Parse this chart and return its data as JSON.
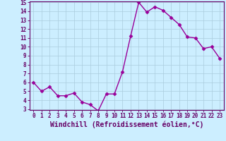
{
  "x": [
    0,
    1,
    2,
    3,
    4,
    5,
    6,
    7,
    8,
    9,
    10,
    11,
    12,
    13,
    14,
    15,
    16,
    17,
    18,
    19,
    20,
    21,
    22,
    23
  ],
  "y": [
    6.0,
    5.0,
    5.5,
    4.5,
    4.5,
    4.8,
    3.8,
    3.5,
    2.8,
    4.7,
    4.7,
    7.2,
    11.2,
    15.0,
    13.9,
    14.5,
    14.1,
    13.3,
    12.5,
    11.1,
    11.0,
    9.8,
    10.0,
    8.7
  ],
  "line_color": "#990099",
  "marker": "D",
  "marker_size": 2.5,
  "bg_color": "#cceeff",
  "grid_color": "#aaccdd",
  "xlabel": "Windchill (Refroidissement éolien,°C)",
  "ylabel": "",
  "ylim": [
    3,
    15
  ],
  "xlim": [
    -0.5,
    23.5
  ],
  "yticks": [
    3,
    4,
    5,
    6,
    7,
    8,
    9,
    10,
    11,
    12,
    13,
    14,
    15
  ],
  "xticks": [
    0,
    1,
    2,
    3,
    4,
    5,
    6,
    7,
    8,
    9,
    10,
    11,
    12,
    13,
    14,
    15,
    16,
    17,
    18,
    19,
    20,
    21,
    22,
    23
  ],
  "tick_label_fontsize": 5.5,
  "xlabel_fontsize": 7.0,
  "spine_color": "#660066",
  "axis_bg": "#cceeff",
  "line_width": 1.0
}
